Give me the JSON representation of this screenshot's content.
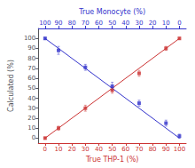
{
  "chart_data": {
    "type": "scatter",
    "xlabel": "True THP-1 (%)",
    "x2label": "True Monocyte (%)",
    "ylabel": "Calculated (%)",
    "xlim": [
      -5,
      105
    ],
    "xticks": [
      0,
      10,
      20,
      30,
      40,
      50,
      60,
      70,
      80,
      90,
      100
    ],
    "x2lim": [
      105,
      -5
    ],
    "x2ticks": [
      100,
      90,
      80,
      70,
      60,
      50,
      40,
      30,
      20,
      10,
      0
    ],
    "ylim": [
      -5,
      110
    ],
    "yticks": [
      0,
      10,
      20,
      30,
      40,
      50,
      60,
      70,
      80,
      90,
      100
    ],
    "grid": false,
    "series": [
      {
        "type": "line",
        "color": "#cc3333",
        "x": [
          0,
          100
        ],
        "values": [
          0,
          100
        ]
      },
      {
        "type": "line",
        "color": "#3333cc",
        "x": [
          0,
          100
        ],
        "values": [
          100,
          0
        ]
      },
      {
        "type": "scatter",
        "marker": "square",
        "color": "#cc3333",
        "x": [
          0,
          10,
          30,
          50,
          70,
          90,
          100
        ],
        "values": [
          0,
          10,
          30,
          48,
          65,
          90,
          100
        ],
        "yerr": [
          1,
          2,
          3,
          3,
          3,
          2,
          1
        ]
      },
      {
        "type": "scatter",
        "marker": "square",
        "color": "#3333cc",
        "x": [
          0,
          10,
          30,
          50,
          70,
          90,
          100
        ],
        "values": [
          100,
          88,
          71,
          52,
          35,
          15,
          2
        ],
        "yerr": [
          1,
          4,
          3,
          4,
          3,
          3,
          2
        ]
      }
    ]
  }
}
